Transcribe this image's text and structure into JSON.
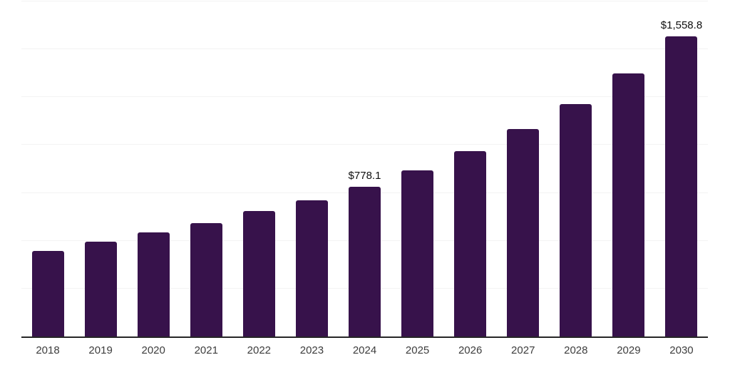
{
  "colors": {
    "background": "#ffffff",
    "bar": "#37124B",
    "axis": "#262626",
    "gridline": "#f3f3f3",
    "tick_label": "#3d3d3d",
    "data_label": "#0f0f0f"
  },
  "chart_data": {
    "type": "bar",
    "title": "",
    "xlabel": "",
    "ylabel": "",
    "categories": [
      "2018",
      "2019",
      "2020",
      "2021",
      "2022",
      "2023",
      "2024",
      "2025",
      "2026",
      "2027",
      "2028",
      "2029",
      "2030"
    ],
    "values": [
      444.6,
      492.8,
      541.0,
      589.1,
      650.2,
      707.7,
      778.1,
      863.3,
      963.4,
      1078.2,
      1207.9,
      1367.2,
      1558.8
    ],
    "data_labels": [
      null,
      null,
      null,
      null,
      null,
      null,
      "$778.1",
      null,
      null,
      null,
      null,
      null,
      "$1,558.8"
    ],
    "ylim": [
      0,
      1741
    ],
    "gridlines": {
      "orientation": "horizontal",
      "count": 7,
      "y_axis_labels_shown": false
    },
    "legend": "none",
    "bar_color": "#37124B"
  }
}
